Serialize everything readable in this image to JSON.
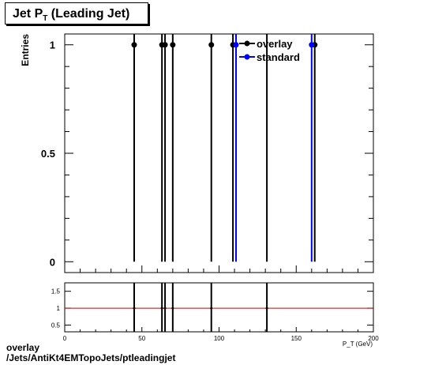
{
  "title": {
    "main": "Jet P",
    "sub": "T",
    "rest": " (Leading Jet)"
  },
  "footer": {
    "line1": "overlay",
    "line2": "/Jets/AntiKt4EMTopoJets/ptleadingjet"
  },
  "chart_data": {
    "type": "scatter",
    "title": "Jet PT (Leading Jet)",
    "ylabel": "Entries",
    "xlabel": "P_T (GeV)",
    "xlim": [
      0,
      200
    ],
    "ylim": [
      -0.05,
      1.05
    ],
    "x_ticks": [
      "0",
      "50",
      "100",
      "150",
      "200"
    ],
    "y_ticks": [
      "0",
      "0.5",
      "1"
    ],
    "legend_position": "top-right",
    "series": [
      {
        "name": "overlay",
        "color": "#000000",
        "x": [
          45,
          63,
          65,
          70,
          95,
          109,
          131,
          162
        ],
        "y": [
          1,
          1,
          1,
          1,
          1,
          1,
          0,
          1
        ]
      },
      {
        "name": "standard",
        "color": "#0000ff",
        "x": [
          111,
          160
        ],
        "y": [
          1,
          1
        ]
      }
    ],
    "ratio": {
      "ylim": [
        0.3,
        1.75
      ],
      "y_ticks": [
        "0.5",
        "1",
        "1.5"
      ],
      "reference": 1,
      "reference_color": "#cc0000",
      "x": [
        45,
        63,
        65,
        70,
        95,
        131
      ],
      "y": [
        1,
        1,
        1,
        1,
        1,
        1
      ]
    }
  }
}
